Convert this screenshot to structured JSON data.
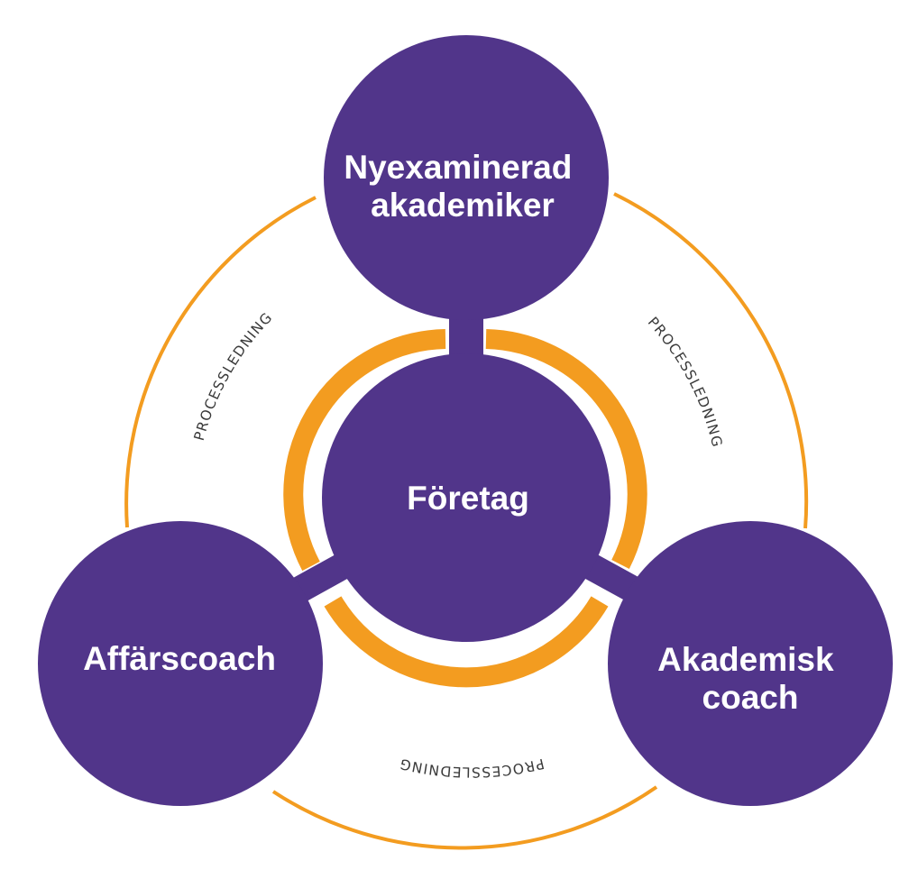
{
  "colors": {
    "purple": "#51358A",
    "orange": "#F39C20",
    "background": "#FFFFFF",
    "arc_text": "#3A3A3A"
  },
  "nodes": {
    "top": {
      "line1": "Nyexaminerad",
      "line2": "akademiker"
    },
    "center": {
      "label": "Företag"
    },
    "left": {
      "label": "Affärscoach"
    },
    "right": {
      "line1": "Akademisk",
      "line2": "coach"
    }
  },
  "connectors": {
    "left": "PROCESSLEDNING",
    "right": "PROCESSLEDNING",
    "bottom": "PROCESSLEDNING"
  }
}
